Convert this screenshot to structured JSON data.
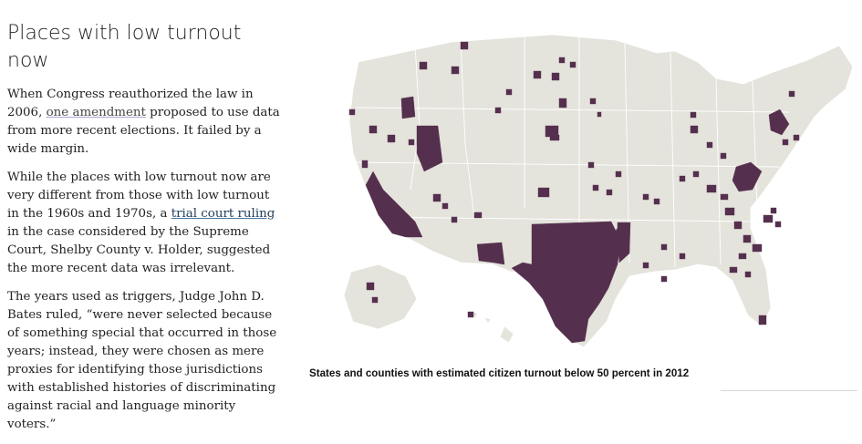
{
  "article": {
    "headline": "Places with low turnout now",
    "p1": {
      "before": "When Congress reauthorized the law in 2006, ",
      "link": "one amendment",
      "after": " proposed to use data from more recent elections. It failed by a wide margin."
    },
    "p2": {
      "before": "While the places with low turnout now are very different from those with low turnout in the 1960s and 1970s, a ",
      "link": "trial court ruling",
      "after": " in the case considered by the Supreme Court, Shelby County v. Holder, suggested the more recent data was irrelevant."
    },
    "p3": "The years used as triggers, Judge John D. Bates ruled, “were never selected because of something special that occurred in those years; instead, they were chosen as mere proxies for identifying those jurisdictions with established histories of discriminating against racial and language minority voters.”"
  },
  "map": {
    "caption": "States and counties with estimated citizen turnout below 50 percent in 2012",
    "colors": {
      "land": "#e4e3dc",
      "border": "#ffffff",
      "highlight": "#55304e"
    }
  }
}
